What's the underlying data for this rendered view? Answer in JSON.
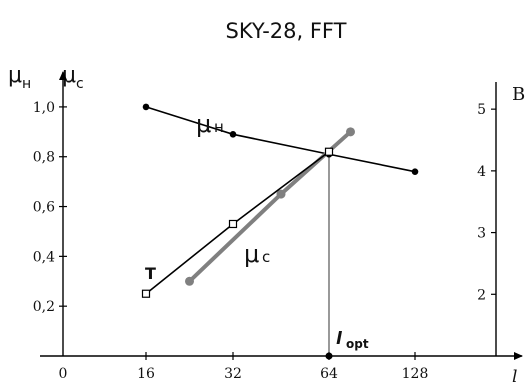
{
  "chart_data": {
    "type": "line",
    "title": "SKY-28, FFT",
    "xlabel": "l",
    "ylabel_left": {
      "symbol": "μ",
      "sub_h": "н",
      "sub_c": "с"
    },
    "ylabel_right": "B",
    "x_ticks": [
      0,
      16,
      32,
      64,
      128
    ],
    "x_tick_labels": [
      "0",
      "16",
      "32",
      "64",
      "128"
    ],
    "y_left_ticks": [
      0.2,
      0.4,
      0.6,
      0.8,
      1.0
    ],
    "y_left_tick_labels": [
      "0,2",
      "0,4",
      "0,6",
      "0,8",
      "1,0"
    ],
    "y_left_lim": [
      0.0,
      1.1
    ],
    "y_right_ticks": [
      2,
      3,
      4,
      5
    ],
    "y_right_tick_labels": [
      "2",
      "3",
      "4",
      "5"
    ],
    "y_right_lim": [
      1.0,
      5.44
    ],
    "series": [
      {
        "name": "μн",
        "axis": "left",
        "color": "#000000",
        "marker": "filled-circle",
        "x": [
          16,
          32,
          64,
          128
        ],
        "y": [
          1.0,
          0.89,
          0.81,
          0.74
        ]
      },
      {
        "name": "μс",
        "axis": "left",
        "color": "#808080",
        "marker": "gray-circle",
        "x": [
          24,
          48,
          80
        ],
        "y": [
          0.3,
          0.65,
          0.9
        ]
      },
      {
        "name": "T",
        "axis": "left",
        "color": "#000000",
        "marker": "open-square",
        "x": [
          16,
          32,
          64
        ],
        "y": [
          0.25,
          0.53,
          0.82
        ]
      }
    ],
    "annotations": {
      "mu_h_label": {
        "symbol": "μ",
        "sub": "н"
      },
      "mu_c_label": {
        "symbol": "μ",
        "sub": "с"
      },
      "t_label": "T",
      "l_opt": {
        "base": "l",
        "sub": "opt",
        "x": 64
      }
    },
    "grid": false,
    "legend": "none"
  }
}
